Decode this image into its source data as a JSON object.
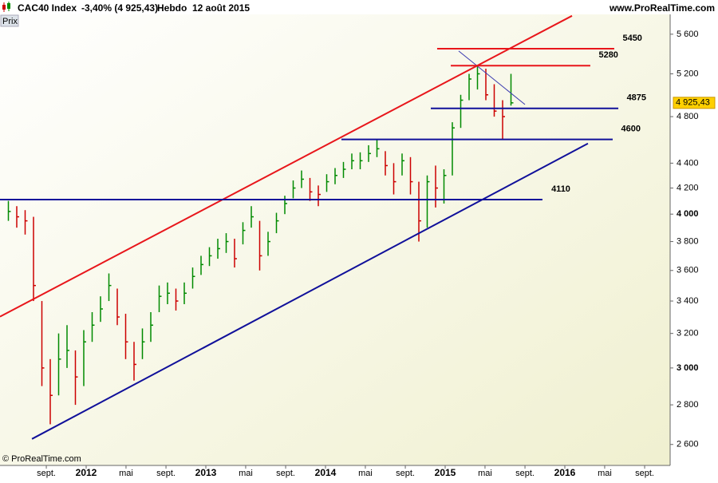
{
  "header": {
    "instrument": "CAC40 Index",
    "change": "-3,40% (4 925,43)",
    "period": "Hebdo",
    "date": "12 août 2015",
    "site": "www.ProRealTime.com"
  },
  "panel_label": "Prix",
  "copyright": "© ProRealTime.com",
  "chart_data": {
    "type": "ohlc",
    "log_scale": true,
    "xlim": [
      2011.28,
      2016.88
    ],
    "ylim": [
      2500,
      5970
    ],
    "xticks": [
      {
        "value": 2011.667,
        "label": "sept."
      },
      2012,
      {
        "value": 2012.333,
        "label": "mai"
      },
      {
        "value": 2012.667,
        "label": "sept."
      },
      2013,
      {
        "value": 2013.333,
        "label": "mai"
      },
      {
        "value": 2013.667,
        "label": "sept."
      },
      2014,
      {
        "value": 2014.333,
        "label": "mai"
      },
      {
        "value": 2014.667,
        "label": "sept."
      },
      2015,
      {
        "value": 2015.333,
        "label": "mai"
      },
      {
        "value": 2015.667,
        "label": "sept."
      },
      2016,
      {
        "value": 2016.333,
        "label": "mai"
      },
      {
        "value": 2016.667,
        "label": "sept."
      }
    ],
    "yticks": [
      {
        "value": 2600,
        "label": "2 600"
      },
      {
        "value": 2800,
        "label": "2 800"
      },
      {
        "value": 3000,
        "label": "3 000"
      },
      {
        "value": 3200,
        "label": "3 200"
      },
      {
        "value": 3400,
        "label": "3 400"
      },
      {
        "value": 3600,
        "label": "3 600"
      },
      {
        "value": 3800,
        "label": "3 800"
      },
      {
        "value": 4000,
        "label": "4 000"
      },
      {
        "value": 4200,
        "label": "4 200"
      },
      {
        "value": 4400,
        "label": "4 400"
      },
      {
        "value": 4800,
        "label": "4 800"
      },
      {
        "value": 5200,
        "label": "5 200"
      },
      {
        "value": 5600,
        "label": "5 600"
      }
    ],
    "x": [
      2011.35,
      2011.42,
      2011.49,
      2011.56,
      2011.63,
      2011.7,
      2011.77,
      2011.84,
      2011.91,
      2011.98,
      2012.05,
      2012.12,
      2012.19,
      2012.26,
      2012.33,
      2012.4,
      2012.47,
      2012.54,
      2012.61,
      2012.68,
      2012.75,
      2012.82,
      2012.89,
      2012.96,
      2013.03,
      2013.1,
      2013.17,
      2013.24,
      2013.31,
      2013.38,
      2013.45,
      2013.52,
      2013.59,
      2013.66,
      2013.73,
      2013.8,
      2013.87,
      2013.94,
      2014.01,
      2014.08,
      2014.15,
      2014.22,
      2014.29,
      2014.36,
      2014.43,
      2014.5,
      2014.57,
      2014.64,
      2014.71,
      2014.78,
      2014.85,
      2014.92,
      2014.99,
      2015.06,
      2015.13,
      2015.2,
      2015.27,
      2015.34,
      2015.41,
      2015.48,
      2015.55
    ],
    "high": [
      4100,
      4060,
      4030,
      3980,
      3400,
      3050,
      3200,
      3250,
      3100,
      3220,
      3330,
      3430,
      3580,
      3480,
      3320,
      3150,
      3230,
      3330,
      3500,
      3520,
      3480,
      3520,
      3620,
      3700,
      3760,
      3820,
      3860,
      3820,
      3940,
      4060,
      3950,
      3870,
      4010,
      4140,
      4260,
      4340,
      4280,
      4220,
      4310,
      4360,
      4410,
      4480,
      4490,
      4550,
      4600,
      4500,
      4400,
      4480,
      4450,
      4250,
      4300,
      4380,
      4350,
      4750,
      5000,
      5200,
      5280,
      5250,
      5100,
      4950,
      5200
    ],
    "low": [
      3950,
      3900,
      3850,
      3400,
      2900,
      2700,
      2850,
      3000,
      2800,
      2900,
      3150,
      3270,
      3400,
      3250,
      3050,
      2930,
      3050,
      3150,
      3330,
      3380,
      3340,
      3380,
      3480,
      3570,
      3630,
      3680,
      3720,
      3620,
      3780,
      3900,
      3600,
      3700,
      3860,
      4000,
      4120,
      4200,
      4100,
      4060,
      4170,
      4230,
      4280,
      4350,
      4350,
      4410,
      4450,
      4300,
      4150,
      4300,
      4150,
      3800,
      3900,
      4050,
      4080,
      4300,
      4700,
      4950,
      5050,
      4950,
      4800,
      4600,
      4900
    ],
    "close": [
      4020,
      3980,
      3950,
      3500,
      3000,
      2850,
      3050,
      3100,
      2950,
      3150,
      3250,
      3350,
      3500,
      3300,
      3150,
      3020,
      3150,
      3250,
      3430,
      3450,
      3400,
      3450,
      3560,
      3640,
      3700,
      3750,
      3800,
      3680,
      3880,
      3980,
      3700,
      3800,
      3950,
      4080,
      4200,
      4270,
      4170,
      4150,
      4250,
      4300,
      4350,
      4420,
      4420,
      4480,
      4520,
      4380,
      4250,
      4420,
      4250,
      3950,
      4250,
      4200,
      4300,
      4700,
      4950,
      5150,
      5200,
      5000,
      4850,
      4800,
      4925.43
    ],
    "up_color": "#008a00",
    "down_color": "#cc0000",
    "last": {
      "value": 4925.43,
      "label": "4 925,43"
    },
    "levels": [
      {
        "value": 5450,
        "color": "#e8161b",
        "x": [
          2014.933,
          2016.413
        ]
      },
      {
        "value": 5280,
        "color": "#e8161b",
        "x": [
          2015.047,
          2016.213
        ]
      },
      {
        "value": 4875,
        "color": "#10109a",
        "x": [
          2014.88,
          2016.447
        ]
      },
      {
        "value": 4600,
        "color": "#10109a",
        "x": [
          2014.133,
          2016.4
        ]
      },
      {
        "value": 4110,
        "color": "#10109a",
        "x": [
          2011.28,
          2015.813
        ]
      }
    ],
    "trendlines": [
      {
        "color": "#e8161b",
        "x": [
          2011.28,
          2016.06
        ],
        "y": [
          3302,
          5796
        ]
      },
      {
        "color": "#10109a",
        "x": [
          2011.547,
          2016.193
        ],
        "y": [
          2627,
          4565
        ]
      },
      {
        "color": "#3a3ab0",
        "x": [
          2015.113,
          2015.667
        ],
        "y": [
          5427,
          4910
        ]
      }
    ]
  }
}
